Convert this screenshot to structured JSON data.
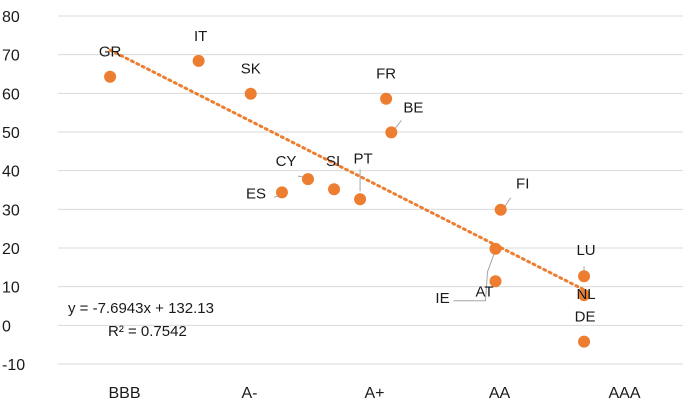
{
  "chart_data": {
    "type": "scatter",
    "title": "",
    "xlabel": "",
    "ylabel": "",
    "x_categories": [
      "BBB",
      "A-",
      "A+",
      "AA",
      "AAA"
    ],
    "x_range": [
      0,
      12
    ],
    "ylim": [
      -10,
      80
    ],
    "yticks": [
      -10,
      0,
      10,
      20,
      30,
      40,
      50,
      60,
      70,
      80
    ],
    "grid": "horizontal",
    "legend": "none",
    "marker_color": "#ED7D31",
    "trendline_color": "#ED7D31",
    "points": [
      {
        "label": "GR",
        "x": 1.0,
        "y": 64.3
      },
      {
        "label": "IT",
        "x": 2.7,
        "y": 68.4
      },
      {
        "label": "SK",
        "x": 3.7,
        "y": 59.9
      },
      {
        "label": "CY",
        "x": 4.8,
        "y": 37.8
      },
      {
        "label": "ES",
        "x": 4.3,
        "y": 34.4
      },
      {
        "label": "SI",
        "x": 5.3,
        "y": 35.2
      },
      {
        "label": "PT",
        "x": 5.8,
        "y": 32.6
      },
      {
        "label": "FR",
        "x": 6.3,
        "y": 58.6
      },
      {
        "label": "BE",
        "x": 6.4,
        "y": 49.9
      },
      {
        "label": "FI",
        "x": 8.5,
        "y": 29.9
      },
      {
        "label": "IE",
        "x": 8.4,
        "y": 19.8
      },
      {
        "label": "AT",
        "x": 8.4,
        "y": 11.4
      },
      {
        "label": "LU",
        "x": 10.1,
        "y": 12.7
      },
      {
        "label": "NL",
        "x": 10.1,
        "y": 7.8
      },
      {
        "label": "DE",
        "x": 10.1,
        "y": -4.2
      }
    ],
    "trendline": {
      "type": "linear",
      "x_from": 1.0,
      "x_to": 10.1,
      "equation": "y = -7.6943x + 132.13",
      "r_squared": "R² = 0.7542"
    }
  }
}
